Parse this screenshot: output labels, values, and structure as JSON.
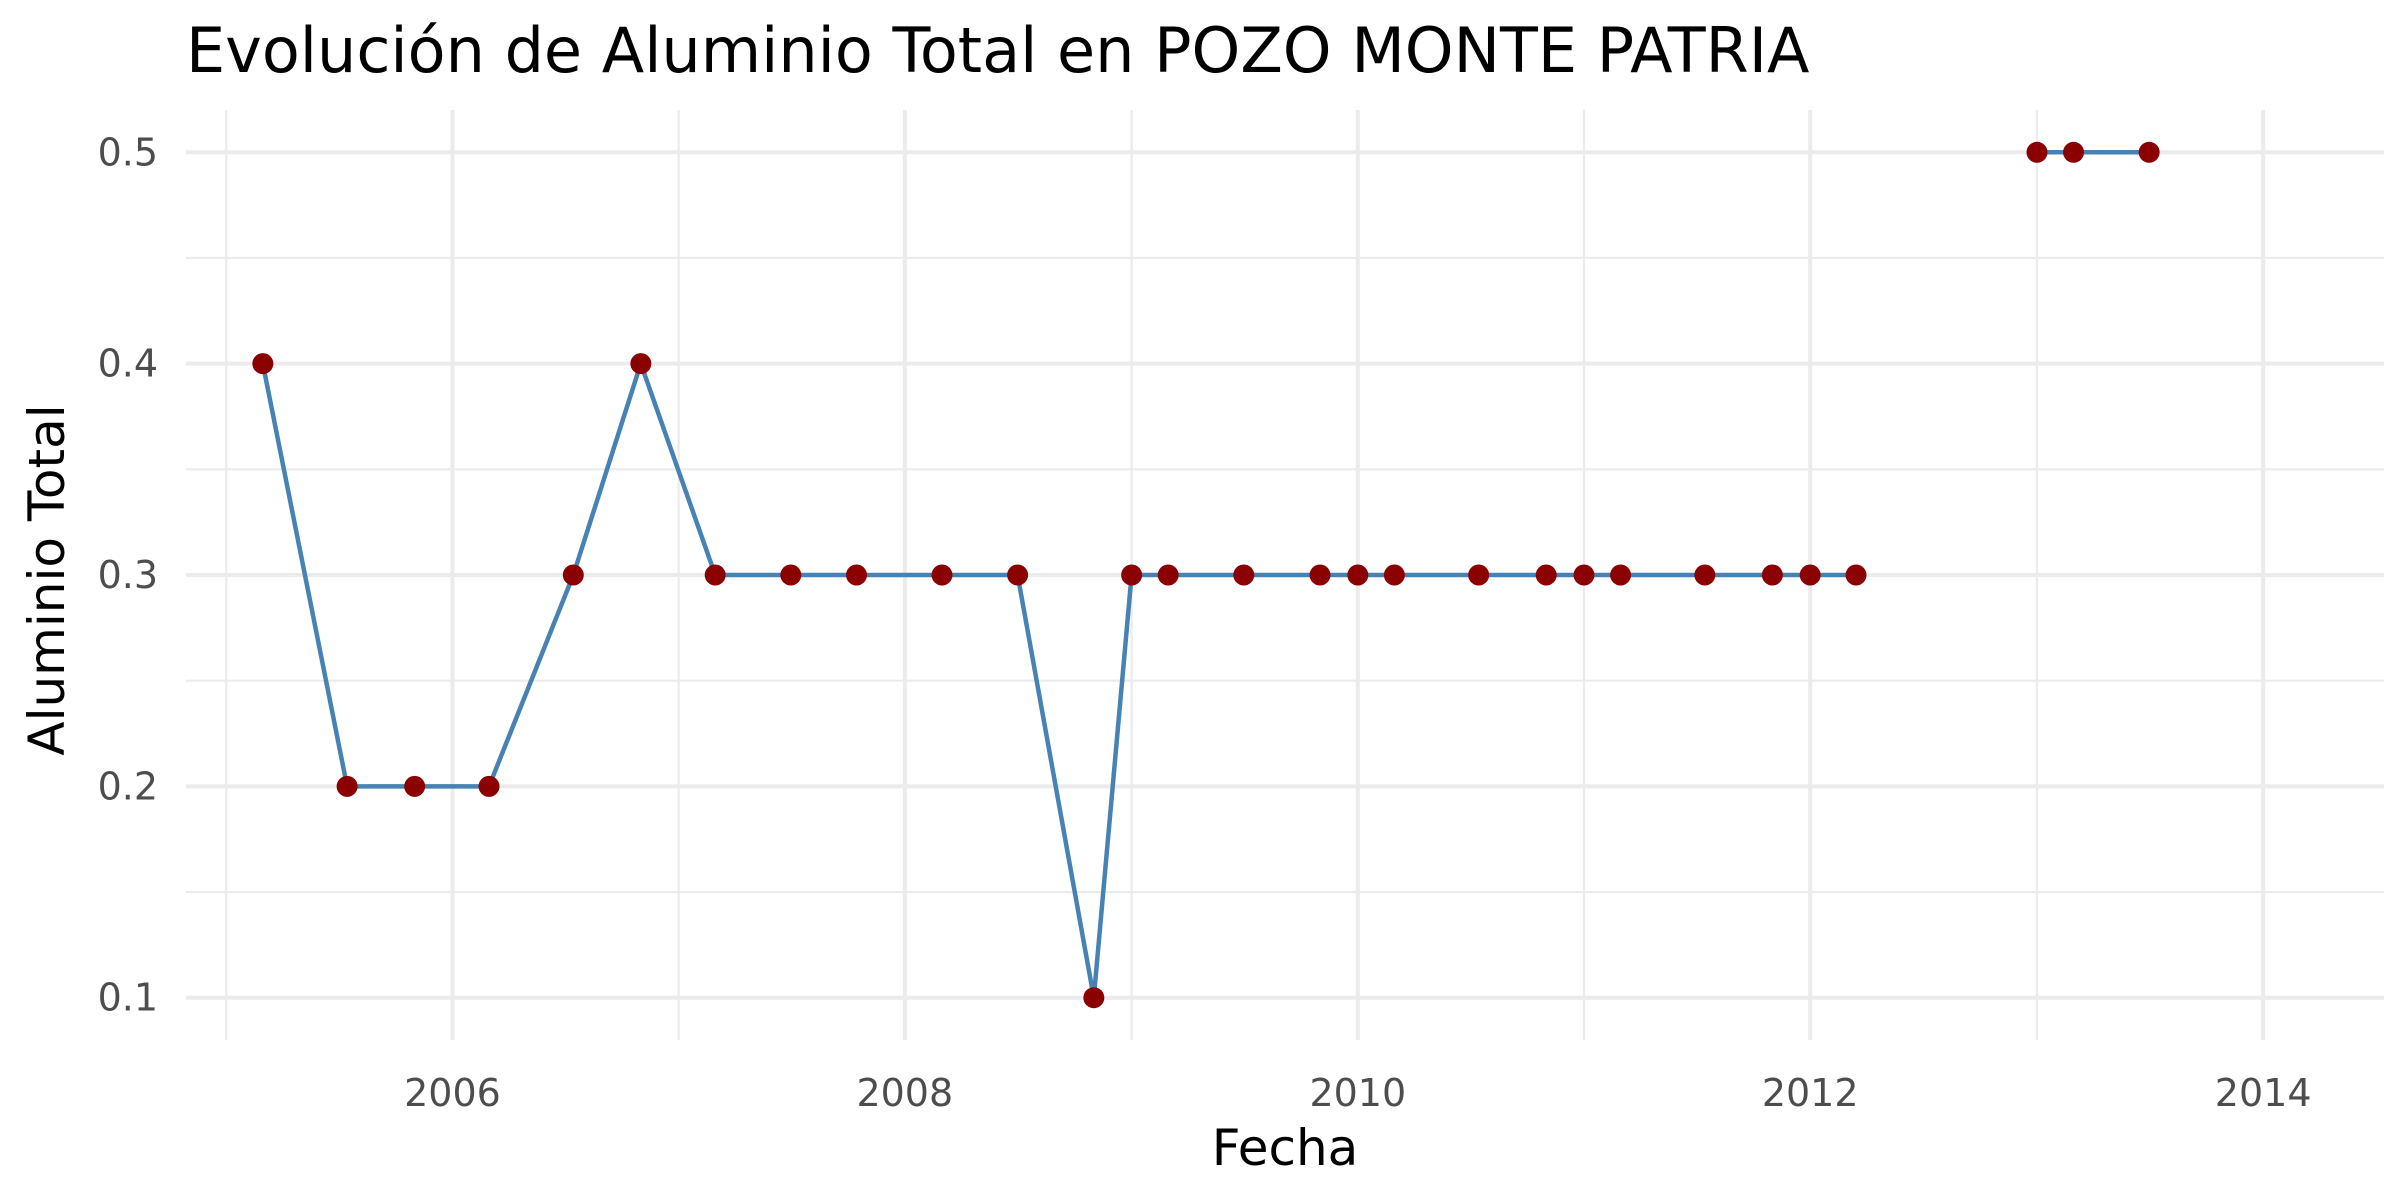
{
  "chart_data": {
    "type": "line",
    "title": "Evolución de Aluminio Total en POZO MONTE PATRIA",
    "xlabel": "Fecha",
    "ylabel": "Aluminio Total",
    "x_ticks": [
      "2006",
      "2008",
      "2010",
      "2012",
      "2014"
    ],
    "y_ticks": [
      "0.1",
      "0.2",
      "0.3",
      "0.4",
      "0.5"
    ],
    "xlim": [
      "2004-10-28",
      "2014-07-15"
    ],
    "ylim": [
      0.08,
      0.52
    ],
    "grid": true,
    "legend": "none",
    "colors": {
      "line": "#4682b4",
      "points": "#8b0000"
    },
    "series": [
      {
        "segments": [
          {
            "x": [
              "2005-03-01",
              "2005-07-15",
              "2005-11-01",
              "2006-03-01",
              "2006-07-15",
              "2006-11-01",
              "2007-03-01",
              "2007-07-01",
              "2007-10-15",
              "2008-03-01",
              "2008-07-01",
              "2008-11-01",
              "2009-01-01",
              "2009-03-01",
              "2009-07-01",
              "2009-11-01",
              "2010-01-01",
              "2010-03-01",
              "2010-07-15",
              "2010-11-01",
              "2011-01-01",
              "2011-03-01",
              "2011-07-15",
              "2011-11-01",
              "2012-01-01",
              "2012-03-15"
            ],
            "y": [
              0.4,
              0.2,
              0.2,
              0.2,
              0.3,
              0.4,
              0.3,
              0.3,
              0.3,
              0.3,
              0.3,
              0.1,
              0.3,
              0.3,
              0.3,
              0.3,
              0.3,
              0.3,
              0.3,
              0.3,
              0.3,
              0.3,
              0.3,
              0.3,
              0.3,
              0.3
            ]
          },
          {
            "x": [
              "2013-01-01",
              "2013-03-01",
              "2013-07-01"
            ],
            "y": [
              0.5,
              0.5,
              0.5
            ]
          }
        ]
      }
    ]
  }
}
